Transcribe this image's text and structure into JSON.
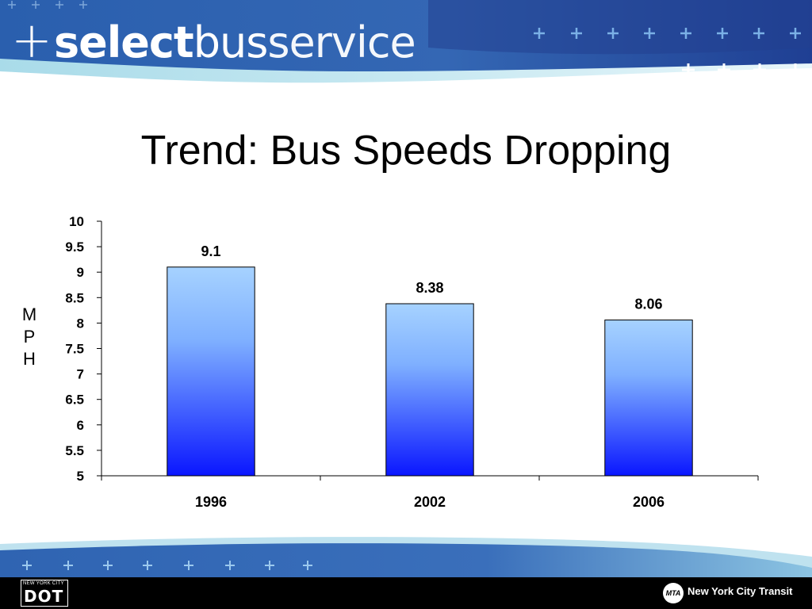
{
  "brand": {
    "plus": "+",
    "part1": "select",
    "part2": "bus",
    "part3": "service"
  },
  "slide_title": "Trend: Bus Speeds Dropping",
  "colors": {
    "header_dark": "#27469a",
    "header_light": "#9fd3e6",
    "bar_top": "#a6d2ff",
    "bar_bottom": "#0a16ff",
    "footer_bar": "#000000"
  },
  "chart_data": {
    "type": "bar",
    "categories": [
      "1996",
      "2002",
      "2006"
    ],
    "values": [
      9.1,
      8.38,
      8.06
    ],
    "data_labels": [
      "9.1",
      "8.38",
      "8.06"
    ],
    "ylabel": "MPH",
    "ylabel_chars": [
      "M",
      "P",
      "H"
    ],
    "ylim": [
      5,
      10
    ],
    "yticks": [
      "5",
      "5.5",
      "6",
      "6.5",
      "7",
      "7.5",
      "8",
      "8.5",
      "9",
      "9.5",
      "10"
    ],
    "grid": false,
    "legend": false
  },
  "footer": {
    "dot_small": "NEW YORK CITY",
    "dot_big": "DOT",
    "mta": "MTA",
    "transit_name": "New York City Transit"
  }
}
